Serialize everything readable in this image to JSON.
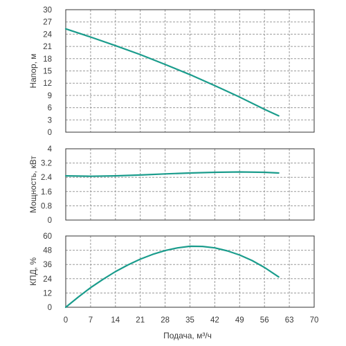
{
  "chart_data": [
    {
      "type": "line",
      "name": "head",
      "xlabel": "",
      "ylabel": "Напор, м",
      "xlim": [
        0,
        70
      ],
      "ylim": [
        0,
        30
      ],
      "x_ticks": [
        "0",
        "7",
        "14",
        "21",
        "28",
        "35",
        "42",
        "49",
        "56",
        "63",
        "70"
      ],
      "y_ticks": [
        "0",
        "3",
        "6",
        "9",
        "12",
        "15",
        "18",
        "21",
        "24",
        "27",
        "30"
      ],
      "grid": true,
      "series": [
        {
          "color": "#1a9c8c",
          "x": [
            0,
            7,
            14,
            21,
            28,
            35,
            42,
            49,
            56,
            60
          ],
          "y": [
            25.3,
            23.3,
            21.2,
            19.0,
            16.6,
            14.1,
            11.4,
            8.6,
            5.6,
            4.0
          ]
        }
      ]
    },
    {
      "type": "line",
      "name": "power",
      "xlabel": "",
      "ylabel": "Мощность, кВт",
      "xlim": [
        0,
        70
      ],
      "ylim": [
        0,
        4
      ],
      "x_ticks": [
        "0",
        "7",
        "14",
        "21",
        "28",
        "35",
        "42",
        "49",
        "56",
        "63",
        "70"
      ],
      "y_ticks": [
        "0",
        "0.8",
        "1.6",
        "2.4",
        "3.2",
        "4"
      ],
      "grid": true,
      "series": [
        {
          "color": "#1a9c8c",
          "x": [
            0,
            7,
            14,
            21,
            28,
            35,
            42,
            49,
            56,
            60
          ],
          "y": [
            2.48,
            2.46,
            2.48,
            2.53,
            2.59,
            2.64,
            2.68,
            2.7,
            2.68,
            2.64
          ]
        }
      ]
    },
    {
      "type": "line",
      "name": "efficiency",
      "xlabel": "Подача, м³/ч",
      "ylabel": "КПД, %",
      "xlim": [
        0,
        70
      ],
      "ylim": [
        0,
        60
      ],
      "x_ticks": [
        "0",
        "7",
        "14",
        "21",
        "28",
        "35",
        "42",
        "49",
        "56",
        "63",
        "70"
      ],
      "y_ticks": [
        "0",
        "12",
        "24",
        "36",
        "48",
        "60"
      ],
      "grid": true,
      "series": [
        {
          "color": "#1a9c8c",
          "x": [
            0,
            3.5,
            7,
            10.5,
            14,
            17.5,
            21,
            24.5,
            28,
            31.5,
            35,
            38.5,
            42,
            45.5,
            49,
            52.5,
            56,
            60
          ],
          "y": [
            0,
            8.5,
            16.5,
            23.5,
            30,
            35.6,
            40.5,
            44.5,
            47.7,
            50,
            51.3,
            51.2,
            50,
            47.5,
            44,
            39.3,
            33.5,
            25.5
          ]
        }
      ]
    }
  ]
}
